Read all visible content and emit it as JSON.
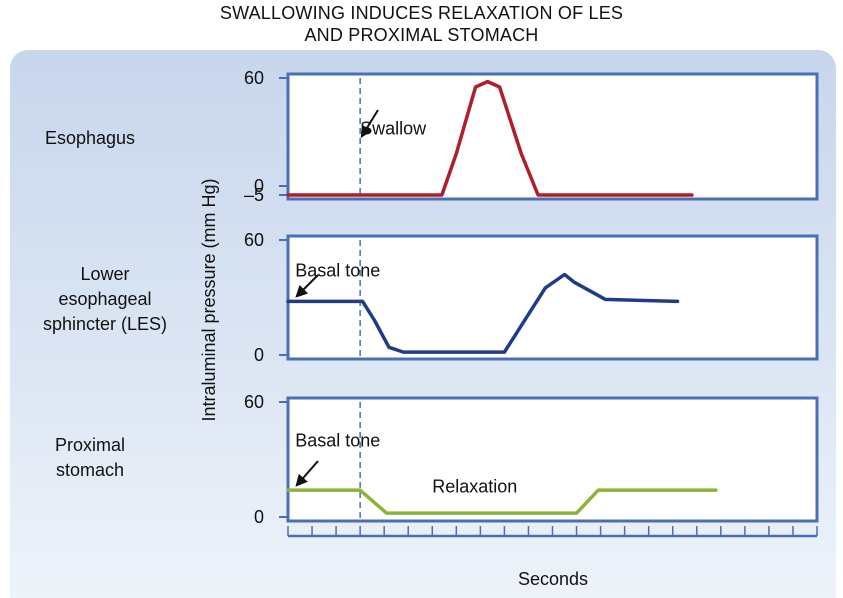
{
  "title_line1": "SWALLOWING INDUCES RELAXATION OF LES",
  "title_line2": "AND PROXIMAL STOMACH",
  "row_labels": {
    "esophagus": "Esophagus",
    "les_line1": "Lower",
    "les_line2": "esophageal",
    "les_line3": "sphincter (LES)",
    "stomach_line1": "Proximal",
    "stomach_line2": "stomach"
  },
  "colors": {
    "esophagus": "#b01e2a",
    "les": "#1f3c88",
    "stomach": "#8db33a",
    "axes": "#4a6fb5",
    "swallow_line": "#4a6fb5"
  },
  "chart_data": {
    "type": "line",
    "ylabel": "Intraluminal pressure (mm Hg)",
    "xlabel": "Seconds",
    "x_ticks": 22,
    "swallow_x": 3,
    "panels": [
      {
        "id": "esophagus",
        "ylim": [
          -5,
          60
        ],
        "ytick_labels": [
          "60",
          "0",
          "–5"
        ],
        "ytick_values": [
          60,
          0,
          -5
        ],
        "annotations": [
          {
            "text": "Swallow",
            "x": 3,
            "y": 32
          }
        ],
        "series": [
          {
            "values": [
              [
                0,
                -5
              ],
              [
                6.4,
                -5
              ],
              [
                7,
                18
              ],
              [
                7.8,
                55
              ],
              [
                8.3,
                58
              ],
              [
                8.8,
                55
              ],
              [
                9.7,
                18
              ],
              [
                10.4,
                -5
              ],
              [
                16.8,
                -5
              ]
            ]
          }
        ]
      },
      {
        "id": "les",
        "ylim": [
          0,
          60
        ],
        "ytick_labels": [
          "60",
          "0"
        ],
        "ytick_values": [
          60,
          0
        ],
        "annotations": [
          {
            "text": "Basal tone",
            "x": 0.3,
            "y": 44
          }
        ],
        "series": [
          {
            "values": [
              [
                0,
                28
              ],
              [
                3.1,
                28
              ],
              [
                3.6,
                18
              ],
              [
                4.2,
                4
              ],
              [
                4.8,
                1.5
              ],
              [
                9,
                1.5
              ],
              [
                10.7,
                35
              ],
              [
                11.5,
                42
              ],
              [
                11.9,
                38
              ],
              [
                13.2,
                29
              ],
              [
                16.2,
                28
              ]
            ]
          }
        ]
      },
      {
        "id": "stomach",
        "ylim": [
          0,
          60
        ],
        "ytick_labels": [
          "60",
          "0"
        ],
        "ytick_values": [
          60,
          0
        ],
        "annotations": [
          {
            "text": "Basal tone",
            "x": 0.3,
            "y": 40
          },
          {
            "text": "Relaxation",
            "x": 6,
            "y": 16
          }
        ],
        "series": [
          {
            "values": [
              [
                0,
                14
              ],
              [
                3,
                14
              ],
              [
                4.1,
                2
              ],
              [
                12,
                2
              ],
              [
                12.9,
                14
              ],
              [
                17.8,
                14
              ]
            ]
          }
        ]
      }
    ]
  }
}
